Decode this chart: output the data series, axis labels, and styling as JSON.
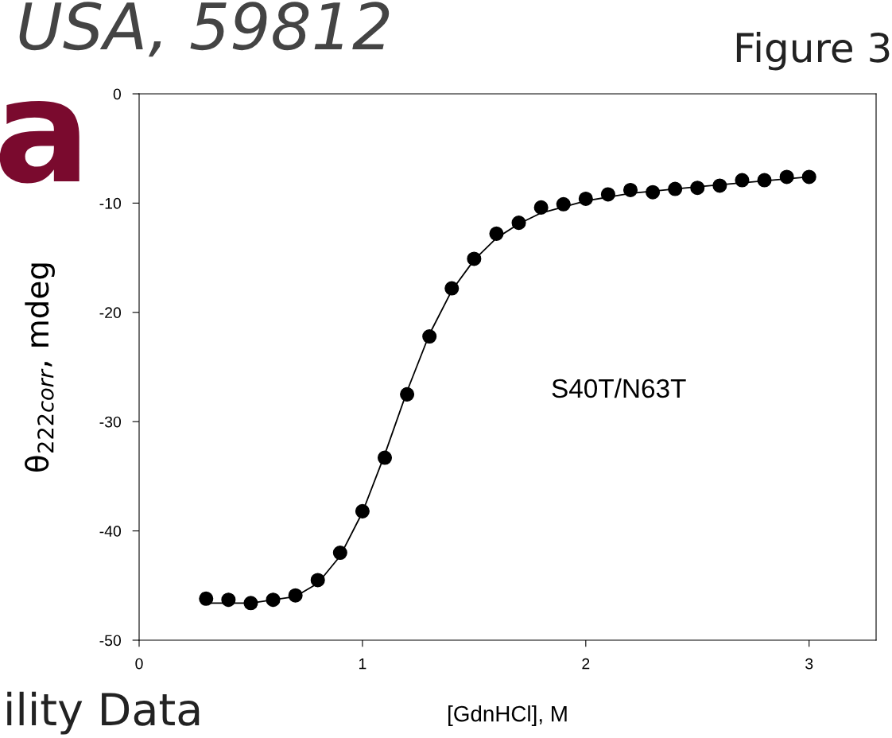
{
  "chart_data": {
    "type": "scatter",
    "xlabel": "[GdnHCl], M",
    "ylabel": "θ$_{222corr}$, mdeg",
    "xlim": [
      0,
      3.3
    ],
    "xticks": [
      0,
      1,
      2,
      3
    ],
    "ylim": [
      -50,
      0
    ],
    "yticks": [
      0,
      -10,
      -20,
      -30,
      -40,
      -50
    ],
    "grid": false,
    "series": [
      {
        "marker": "circle",
        "color": "#000000",
        "x": [
          0.3,
          0.4,
          0.5,
          0.6,
          0.7,
          0.8,
          0.9,
          1.0,
          1.1,
          1.2,
          1.3,
          1.4,
          1.5,
          1.6,
          1.7,
          1.8,
          1.9,
          2.0,
          2.1,
          2.2,
          2.3,
          2.4,
          2.5,
          2.6,
          2.7,
          2.8,
          2.9,
          3.0
        ],
        "values": [
          -46.2,
          -46.3,
          -46.6,
          -46.3,
          -45.9,
          -44.5,
          -42.0,
          -38.2,
          -33.3,
          -27.5,
          -22.2,
          -17.8,
          -15.1,
          -12.8,
          -11.8,
          -10.4,
          -10.1,
          -9.6,
          -9.2,
          -8.8,
          -9.0,
          -8.7,
          -8.6,
          -8.4,
          -7.9,
          -7.9,
          -7.6,
          -7.6
        ]
      },
      {
        "type": "line",
        "color": "#000000",
        "x": [
          0.3,
          0.5,
          0.7,
          0.8,
          0.9,
          1.0,
          1.1,
          1.2,
          1.3,
          1.4,
          1.5,
          1.6,
          1.7,
          1.8,
          2.0,
          2.2,
          2.5,
          3.0
        ],
        "values": [
          -46.6,
          -46.6,
          -46.0,
          -44.8,
          -42.3,
          -38.3,
          -33.0,
          -27.2,
          -22.0,
          -18.0,
          -15.2,
          -13.2,
          -11.9,
          -10.9,
          -9.8,
          -9.1,
          -8.5,
          -7.6
        ]
      }
    ],
    "annotations": [
      "S40T/N63T",
      "USA, 59812",
      "Figure 3",
      "a",
      "ility Data"
    ]
  }
}
